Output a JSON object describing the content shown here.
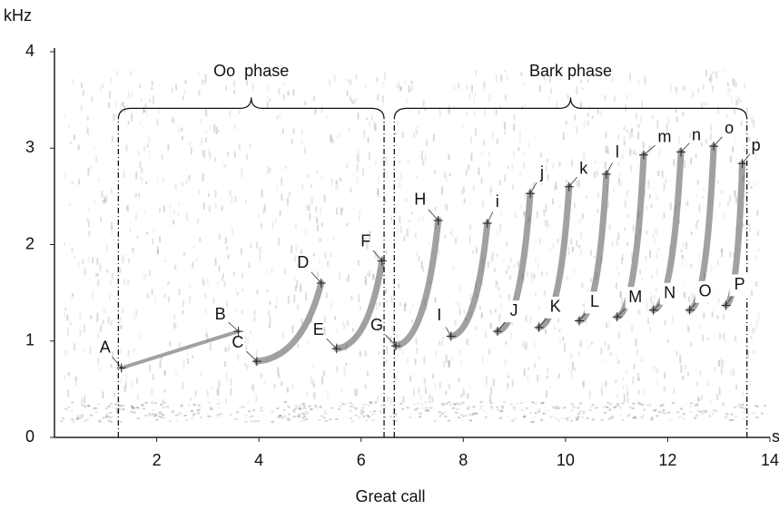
{
  "chart_data": {
    "type": "spectrogram",
    "x_label": "Great call",
    "x_unit": "s",
    "y_unit": "kHz",
    "xlim": [
      0,
      14
    ],
    "xticks": [
      2,
      4,
      6,
      8,
      10,
      12,
      14
    ],
    "ylim": [
      0,
      4
    ],
    "yticks": [
      0,
      1,
      2,
      3,
      4
    ],
    "color": "#444444",
    "phases": [
      {
        "label": "Oo  phase",
        "start": 1.25,
        "end": 6.45
      },
      {
        "label": "Bark phase",
        "start": 6.65,
        "end": 13.55
      }
    ],
    "points": {
      "labels": [
        "A",
        "B",
        "C",
        "D",
        "E",
        "F",
        "G",
        "H",
        "I",
        "i",
        "J",
        "j",
        "K",
        "k",
        "L",
        "l",
        "M",
        "m",
        "N",
        "n",
        "O",
        "o",
        "P",
        "p"
      ],
      "x": [
        1.31,
        3.6,
        3.96,
        5.22,
        5.52,
        6.41,
        6.68,
        7.51,
        7.76,
        8.47,
        8.67,
        9.31,
        9.48,
        10.07,
        10.27,
        10.8,
        11.01,
        11.53,
        11.72,
        12.26,
        12.43,
        12.9,
        13.14,
        13.46
      ],
      "y": [
        0.72,
        1.1,
        0.79,
        1.6,
        0.92,
        1.83,
        0.95,
        2.25,
        1.05,
        2.22,
        1.1,
        2.53,
        1.14,
        2.6,
        1.21,
        2.73,
        1.25,
        2.93,
        1.32,
        2.96,
        1.32,
        3.02,
        1.37,
        2.84
      ]
    }
  }
}
